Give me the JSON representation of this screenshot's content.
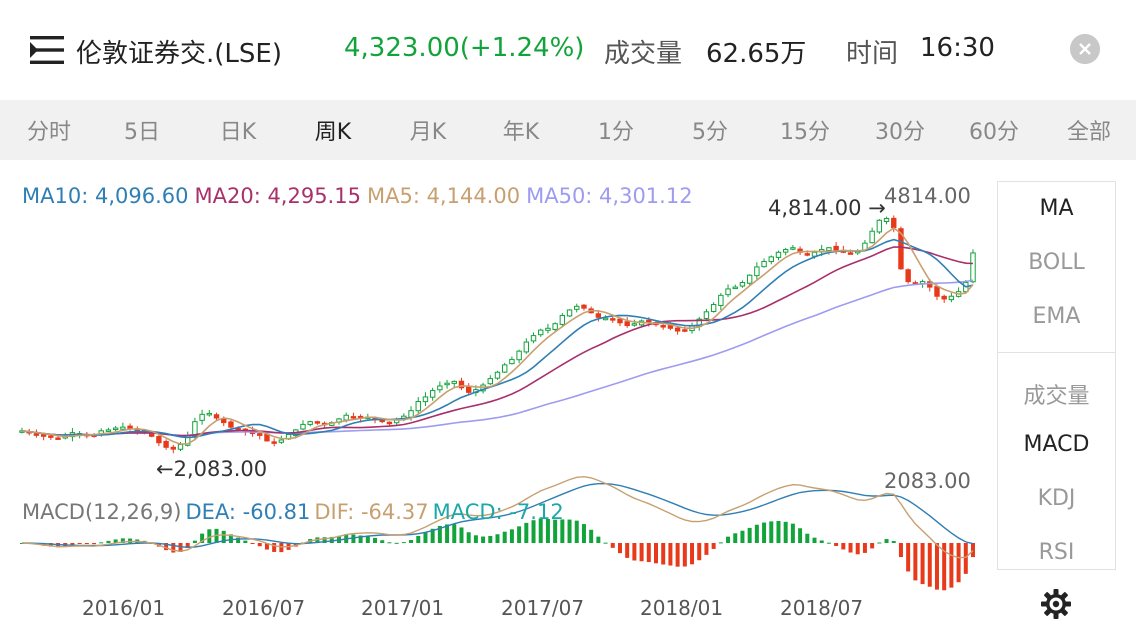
{
  "header": {
    "menu_icon": "list-menu-icon",
    "title": "伦敦证券交.(LSE)",
    "price": "4,323.00(+1.24%)",
    "volume_label": "成交量",
    "volume_value": "62.65万",
    "time_label": "时间",
    "time_value": "16:30",
    "close_icon": "close-icon"
  },
  "tabs": [
    {
      "label": "分时",
      "active": false
    },
    {
      "label": "5日",
      "active": false
    },
    {
      "label": "日K",
      "active": false
    },
    {
      "label": "周K",
      "active": true
    },
    {
      "label": "月K",
      "active": false
    },
    {
      "label": "年K",
      "active": false
    },
    {
      "label": "1分",
      "active": false
    },
    {
      "label": "5分",
      "active": false
    },
    {
      "label": "15分",
      "active": false
    },
    {
      "label": "30分",
      "active": false
    },
    {
      "label": "60分",
      "active": false
    },
    {
      "label": "全部",
      "active": false
    }
  ],
  "legend": {
    "ma10": "MA10: 4,096.60",
    "ma20": "MA20: 4,295.15",
    "ma5": "MA5: 4,144.00",
    "ma50": "MA50: 4,301.12"
  },
  "macd_legend": {
    "params": "MACD(12,26,9)",
    "dea": "DEA: -60.81",
    "dif": "DIF: -64.37",
    "macd": "MACD: -7.12"
  },
  "annotations": {
    "max_label": "4814.00",
    "max_marker": "4,814.00",
    "min_marker": "2,083.00",
    "min_label": "2083.00"
  },
  "side_menu": {
    "main": [
      {
        "label": "MA",
        "active": true
      },
      {
        "label": "BOLL",
        "active": false
      },
      {
        "label": "EMA",
        "active": false
      }
    ],
    "sub": [
      {
        "label": "成交量",
        "active": false
      },
      {
        "label": "MACD",
        "active": true
      },
      {
        "label": "KDJ",
        "active": false
      },
      {
        "label": "RSI",
        "active": false
      }
    ]
  },
  "settings_icon": "gear-icon",
  "colors": {
    "up": "#12a33b",
    "down": "#e8391b",
    "ma10": "#2f7fb5",
    "ma20": "#a8306b",
    "ma5": "#c8a070",
    "ma50": "#9d9cf0"
  },
  "chart_data": {
    "type": "candlestick",
    "period": "周K",
    "x_tick_labels": [
      "2016/01",
      "2016/07",
      "2017/01",
      "2017/07",
      "2018/01",
      "2018/07"
    ],
    "max": 4814.0,
    "min": 2083.0,
    "ma_latest": {
      "MA10": 4096.6,
      "MA20": 4295.15,
      "MA5": 4144.0,
      "MA50": 4301.12
    },
    "close_by_week": [
      2380,
      2360,
      2340,
      2320,
      2310,
      2300,
      2330,
      2360,
      2350,
      2330,
      2320,
      2380,
      2390,
      2410,
      2420,
      2400,
      2380,
      2360,
      2320,
      2250,
      2200,
      2180,
      2230,
      2330,
      2480,
      2560,
      2570,
      2520,
      2470,
      2420,
      2400,
      2380,
      2350,
      2330,
      2270,
      2250,
      2280,
      2340,
      2390,
      2450,
      2480,
      2470,
      2450,
      2470,
      2510,
      2550,
      2530,
      2520,
      2530,
      2510,
      2480,
      2470,
      2500,
      2540,
      2600,
      2700,
      2750,
      2820,
      2870,
      2900,
      2920,
      2850,
      2800,
      2830,
      2880,
      2950,
      3020,
      3100,
      3160,
      3250,
      3350,
      3420,
      3480,
      3500,
      3550,
      3640,
      3700,
      3740,
      3720,
      3670,
      3620,
      3610,
      3600,
      3560,
      3530,
      3550,
      3580,
      3570,
      3540,
      3520,
      3500,
      3470,
      3480,
      3530,
      3600,
      3680,
      3760,
      3860,
      3930,
      3950,
      4000,
      4080,
      4170,
      4230,
      4280,
      4330,
      4360,
      4380,
      4330,
      4300,
      4330,
      4360,
      4380,
      4350,
      4330,
      4320,
      4340,
      4430,
      4560,
      4680,
      4700,
      4600,
      4150,
      4010,
      3990,
      4010,
      3950,
      3850,
      3820,
      3850,
      3900,
      4000,
      4323
    ],
    "macd": {
      "DEA": -60.81,
      "DIF": -64.37,
      "MACD": -7.12
    }
  }
}
